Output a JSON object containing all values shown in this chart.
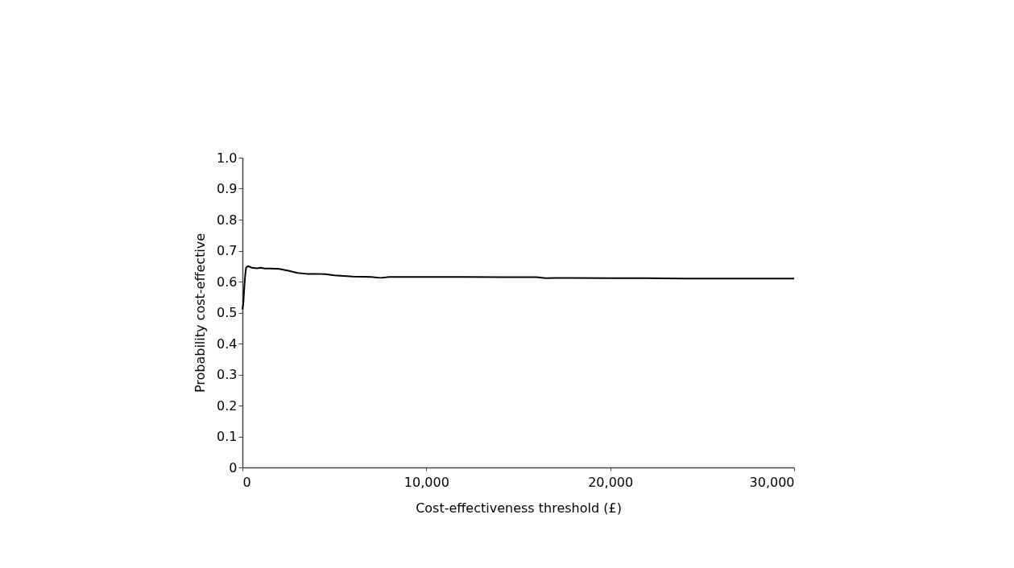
{
  "chart_data": {
    "type": "line",
    "xlabel": "Cost-effectiveness threshold (£)",
    "ylabel": "Probability cost-effective",
    "x": [
      0,
      50,
      100,
      150,
      200,
      300,
      500,
      800,
      1000,
      1200,
      1500,
      2000,
      2500,
      3000,
      3500,
      4000,
      4500,
      5000,
      5500,
      6000,
      7000,
      7500,
      8000,
      9000,
      10000,
      12000,
      14000,
      16000,
      16500,
      17000,
      18000,
      20000,
      22000,
      24000,
      26000,
      28000,
      30000
    ],
    "series": [
      {
        "color": "#000000",
        "values": [
          0.51,
          0.53,
          0.58,
          0.62,
          0.645,
          0.65,
          0.645,
          0.643,
          0.645,
          0.642,
          0.642,
          0.641,
          0.635,
          0.628,
          0.625,
          0.625,
          0.624,
          0.62,
          0.618,
          0.616,
          0.615,
          0.612,
          0.615,
          0.615,
          0.615,
          0.615,
          0.614,
          0.614,
          0.611,
          0.612,
          0.612,
          0.611,
          0.611,
          0.61,
          0.61,
          0.61,
          0.61
        ]
      }
    ],
    "xlim": [
      0,
      30000
    ],
    "xticks": [
      0,
      {
        "value": 10000,
        "label": "10,000"
      },
      {
        "value": 20000,
        "label": "20,000"
      },
      {
        "value": 30000,
        "label": "30,000"
      }
    ],
    "ylim": [
      0,
      1
    ],
    "yticks": [
      0,
      0.1,
      0.2,
      0.3,
      0.4,
      0.5,
      0.6,
      0.7,
      0.8,
      0.9,
      {
        "value": 1,
        "label": "1.0"
      }
    ],
    "grid": false,
    "marker": "none",
    "line_style": "solid"
  }
}
